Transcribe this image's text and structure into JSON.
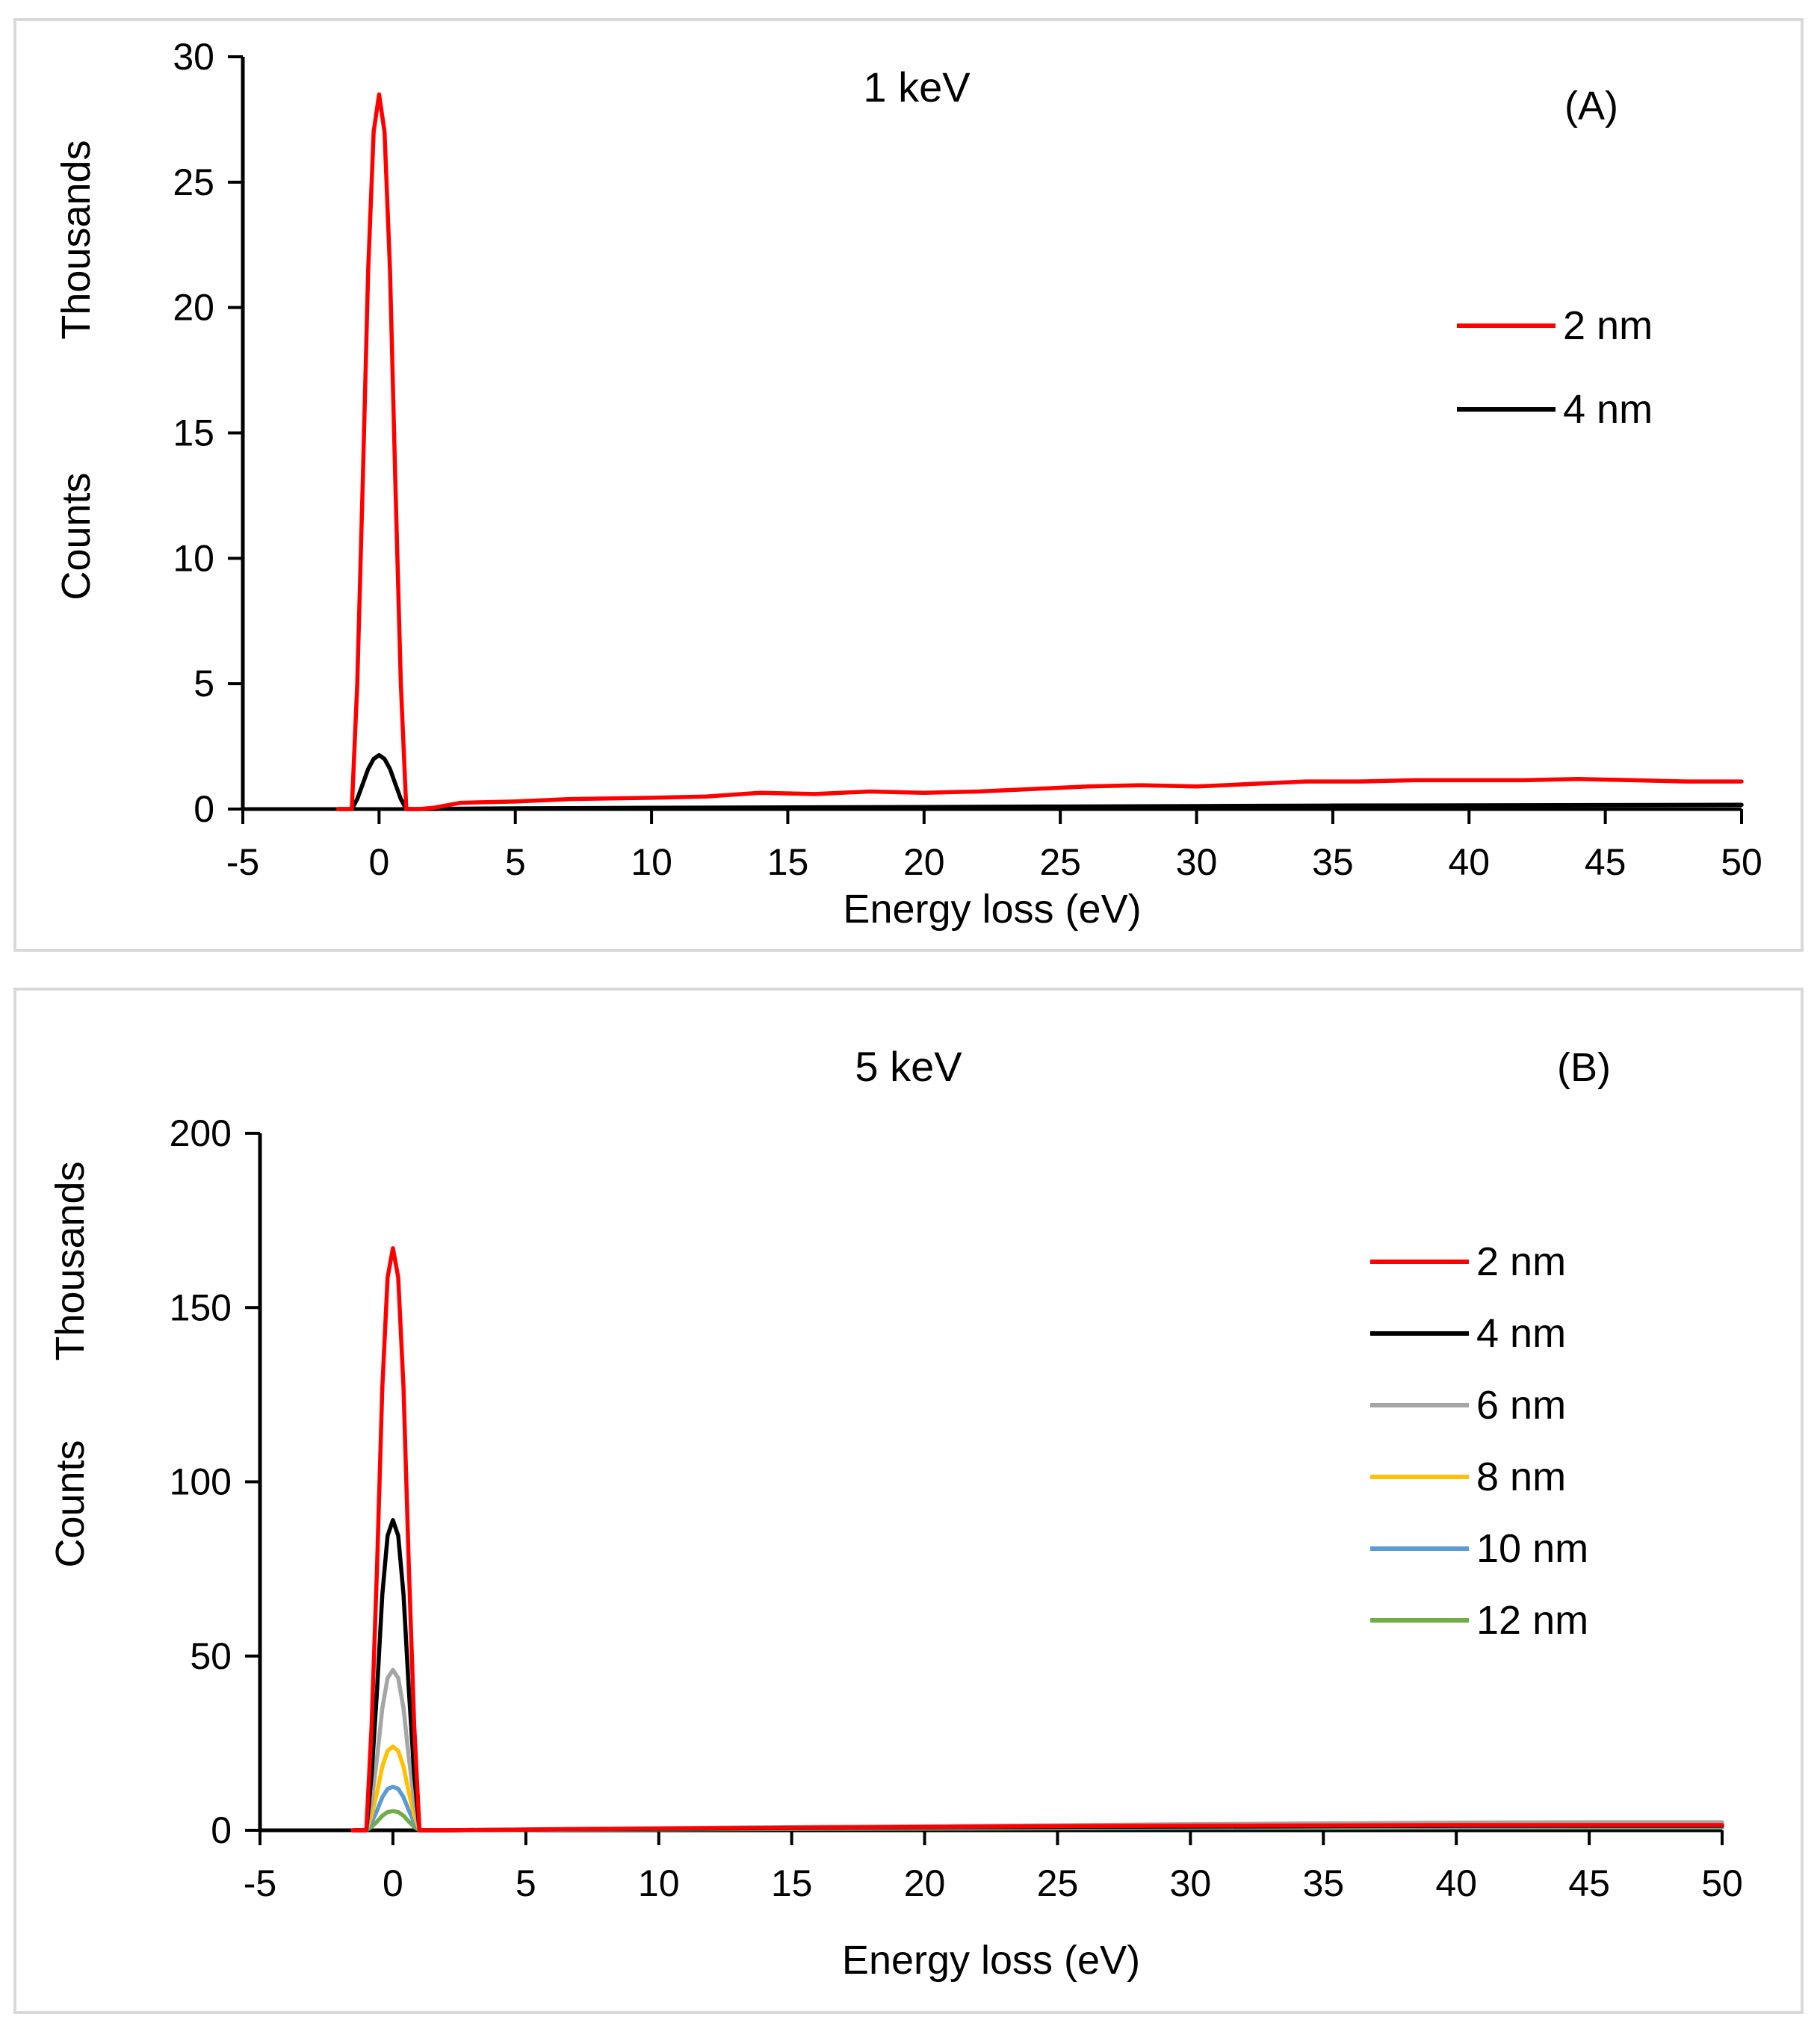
{
  "chart_data": [
    {
      "type": "line",
      "title": "1 keV",
      "panel_label": "(A)",
      "xlabel": "Energy loss (eV)",
      "ylabel": "Counts",
      "ylabel_units": "Thousands",
      "xlim": [
        -5,
        50
      ],
      "ylim": [
        0,
        30
      ],
      "xticks": [
        -5,
        0,
        5,
        10,
        15,
        20,
        25,
        30,
        35,
        40,
        45,
        50
      ],
      "yticks": [
        0,
        5,
        10,
        15,
        20,
        25,
        30
      ],
      "legend_position": "right",
      "series": [
        {
          "name": "2 nm",
          "color": "#ff0000",
          "x": [
            -1.5,
            -1.0,
            -0.8,
            -0.6,
            -0.4,
            -0.2,
            0,
            0.2,
            0.4,
            0.6,
            0.8,
            1.0,
            1.5,
            2,
            3,
            5,
            7,
            10,
            12,
            14,
            16,
            18,
            20,
            22,
            24,
            26,
            28,
            30,
            32,
            34,
            36,
            38,
            40,
            42,
            44,
            46,
            48,
            50
          ],
          "y": [
            0,
            0,
            5.0,
            13.0,
            21.5,
            27.0,
            28.5,
            27.0,
            21.5,
            13.0,
            5.0,
            0,
            0,
            0.05,
            0.25,
            0.3,
            0.4,
            0.45,
            0.5,
            0.65,
            0.6,
            0.7,
            0.65,
            0.7,
            0.8,
            0.9,
            0.95,
            0.9,
            1.0,
            1.1,
            1.1,
            1.15,
            1.15,
            1.15,
            1.2,
            1.15,
            1.1,
            1.1
          ]
        },
        {
          "name": "4 nm",
          "color": "#000000",
          "x": [
            -1.5,
            -1.0,
            -0.8,
            -0.6,
            -0.4,
            -0.2,
            0,
            0.2,
            0.4,
            0.6,
            0.8,
            1.0,
            1.5,
            5,
            10,
            15,
            20,
            25,
            30,
            35,
            40,
            45,
            50
          ],
          "y": [
            0,
            0,
            0.4,
            1.0,
            1.6,
            2.0,
            2.15,
            2.0,
            1.6,
            1.0,
            0.4,
            0,
            0,
            0.03,
            0.05,
            0.07,
            0.08,
            0.1,
            0.12,
            0.14,
            0.15,
            0.16,
            0.17
          ]
        }
      ]
    },
    {
      "type": "line",
      "title": "5 keV",
      "panel_label": "(B)",
      "xlabel": "Energy loss (eV)",
      "ylabel": "Counts",
      "ylabel_units": "Thousands",
      "xlim": [
        -5,
        50
      ],
      "ylim": [
        0,
        200
      ],
      "xticks": [
        -5,
        0,
        5,
        10,
        15,
        20,
        25,
        30,
        35,
        40,
        45,
        50
      ],
      "yticks": [
        0,
        50,
        100,
        150,
        200
      ],
      "legend_position": "right",
      "series": [
        {
          "name": "2 nm",
          "color": "#ff0000",
          "peak": 167,
          "tail": [
            0,
            0.3,
            0.6,
            0.8,
            1.0,
            1.2,
            1.3,
            1.4,
            1.5,
            1.5,
            1.5
          ]
        },
        {
          "name": "4 nm",
          "color": "#000000",
          "peak": 89,
          "tail": [
            0,
            0.3,
            0.5,
            0.7,
            0.9,
            1.0,
            1.1,
            1.2,
            1.3,
            1.3,
            1.3
          ]
        },
        {
          "name": "6 nm",
          "color": "#a5a5a5",
          "peak": 46,
          "tail": [
            0,
            0.4,
            0.7,
            1.0,
            1.2,
            1.5,
            1.8,
            2.0,
            2.2,
            2.3,
            2.3
          ]
        },
        {
          "name": "8 nm",
          "color": "#ffc000",
          "peak": 24,
          "tail": [
            0,
            0.3,
            0.5,
            0.7,
            0.9,
            1.1,
            1.3,
            1.4,
            1.5,
            1.6,
            1.6
          ]
        },
        {
          "name": "10 nm",
          "color": "#5b9bd5",
          "peak": 12.5,
          "tail": [
            0,
            0.2,
            0.4,
            0.6,
            0.7,
            0.8,
            0.9,
            1.0,
            1.0,
            1.1,
            1.1
          ]
        },
        {
          "name": "12 nm",
          "color": "#70ad47",
          "peak": 5.5,
          "tail": [
            0,
            0.2,
            0.3,
            0.4,
            0.5,
            0.6,
            0.7,
            0.7,
            0.8,
            0.8,
            0.8
          ]
        }
      ]
    }
  ]
}
